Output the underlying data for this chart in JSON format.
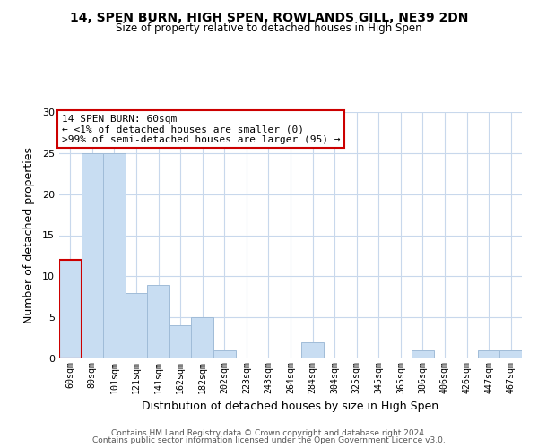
{
  "title": "14, SPEN BURN, HIGH SPEN, ROWLANDS GILL, NE39 2DN",
  "subtitle": "Size of property relative to detached houses in High Spen",
  "xlabel": "Distribution of detached houses by size in High Spen",
  "ylabel": "Number of detached properties",
  "bar_color": "#c8ddf2",
  "bar_edge_color": "#a0bcd8",
  "highlight_bar_edge_color": "#cc0000",
  "categories": [
    "60sqm",
    "80sqm",
    "101sqm",
    "121sqm",
    "141sqm",
    "162sqm",
    "182sqm",
    "202sqm",
    "223sqm",
    "243sqm",
    "264sqm",
    "284sqm",
    "304sqm",
    "325sqm",
    "345sqm",
    "365sqm",
    "386sqm",
    "406sqm",
    "426sqm",
    "447sqm",
    "467sqm"
  ],
  "values": [
    12,
    25,
    25,
    8,
    9,
    4,
    5,
    1,
    0,
    0,
    0,
    2,
    0,
    0,
    0,
    0,
    1,
    0,
    0,
    1,
    1
  ],
  "ylim": [
    0,
    30
  ],
  "yticks": [
    0,
    5,
    10,
    15,
    20,
    25,
    30
  ],
  "highlight_index": 0,
  "annotation_title": "14 SPEN BURN: 60sqm",
  "annotation_line1": "← <1% of detached houses are smaller (0)",
  "annotation_line2": ">99% of semi-detached houses are larger (95) →",
  "footer_line1": "Contains HM Land Registry data © Crown copyright and database right 2024.",
  "footer_line2": "Contains public sector information licensed under the Open Government Licence v3.0.",
  "background_color": "#ffffff",
  "grid_color": "#c8d8ec"
}
